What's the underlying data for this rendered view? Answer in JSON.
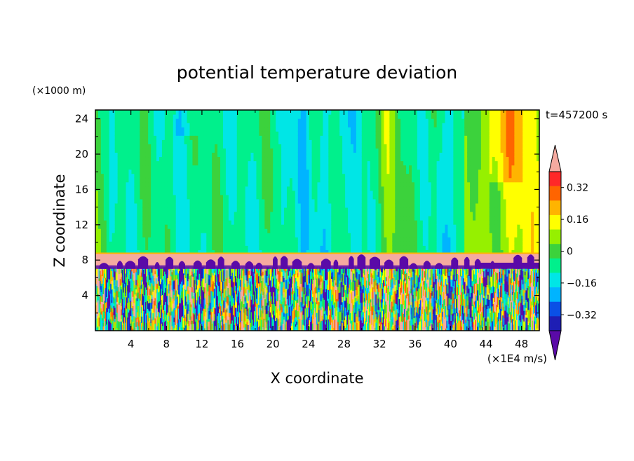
{
  "chart_data": {
    "type": "heatmap",
    "title": "potential temperature deviation",
    "time_label": "t=457200 s",
    "xlabel": "X coordinate",
    "ylabel": "Z coordinate",
    "x_units": "(×1E4 m/s)",
    "y_units": "(×1000 m)",
    "x_ticks": [
      "4",
      "8",
      "12",
      "16",
      "20",
      "24",
      "28",
      "32",
      "36",
      "40",
      "44",
      "48"
    ],
    "y_ticks": [
      "4",
      "8",
      "12",
      "16",
      "20",
      "24"
    ],
    "xlim": [
      0,
      50
    ],
    "ylim": [
      0,
      25
    ],
    "colorbar": {
      "labels": [
        "0.32",
        "0.16",
        "0",
        "−0.16",
        "−0.32"
      ],
      "label_values": [
        0.32,
        0.16,
        0,
        -0.16,
        -0.32
      ],
      "levels": [
        -0.4,
        -0.32,
        -0.24,
        -0.16,
        -0.08,
        0,
        0.08,
        0.16,
        0.24,
        0.32,
        0.4
      ],
      "colors": [
        "#5a0aa8",
        "#1e1eb4",
        "#0a50e6",
        "#00b4ff",
        "#00e6e6",
        "#00f08c",
        "#3cd23c",
        "#96f000",
        "#ffff00",
        "#ffb400",
        "#ff6400",
        "#ff2828",
        "#f5aaa0"
      ]
    },
    "regions": [
      {
        "name": "upper layer",
        "z_range": [
          9,
          25
        ],
        "description_values": "mostly near 0 to slightly negative; positive (0.16-0.32) near x 30-35 and x 42-50"
      },
      {
        "name": "inversion band",
        "z_range": [
          7.2,
          8.7
        ],
        "value": 0.4
      },
      {
        "name": "lower turbulent layer",
        "z_range": [
          0,
          7.2
        ],
        "value_range": [
          -0.4,
          0.4
        ]
      }
    ]
  }
}
